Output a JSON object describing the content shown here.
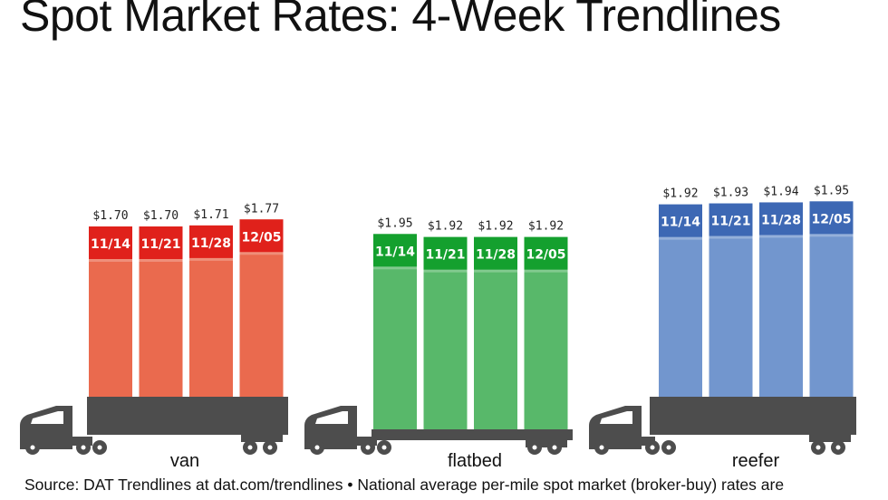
{
  "title": "Spot Market Rates: 4-Week Trendlines",
  "source": "Source: DAT Trendlines at dat.com/trendlines • National average per-mile spot market (broker-buy) rates are",
  "chart_data": {
    "type": "bar",
    "title": "Spot Market Rates: 4-Week Trendlines",
    "xlabel": "",
    "ylabel": "",
    "ylim": [
      0,
      2.1
    ],
    "grid": false,
    "legend": "none",
    "groups": [
      {
        "name": "van",
        "color": "#ea6a4e",
        "tag_color": "#e0211b",
        "categories": [
          "11/14",
          "11/21",
          "11/28",
          "12/05"
        ],
        "values": [
          1.7,
          1.7,
          1.71,
          1.77
        ],
        "labels": [
          "$1.70",
          "$1.70",
          "$1.71",
          "$1.77"
        ]
      },
      {
        "name": "flatbed",
        "color": "#58b86a",
        "tag_color": "#14a02e",
        "categories": [
          "11/14",
          "11/21",
          "11/28",
          "12/05"
        ],
        "values": [
          1.95,
          1.92,
          1.92,
          1.92
        ],
        "labels": [
          "$1.95",
          "$1.92",
          "$1.92",
          "$1.92"
        ]
      },
      {
        "name": "reefer",
        "color": "#7296ce",
        "tag_color": "#3d68b4",
        "categories": [
          "11/14",
          "11/21",
          "11/28",
          "12/05"
        ],
        "values": [
          1.92,
          1.93,
          1.94,
          1.95
        ],
        "labels": [
          "$1.92",
          "$1.93",
          "$1.94",
          "$1.95"
        ]
      }
    ]
  }
}
